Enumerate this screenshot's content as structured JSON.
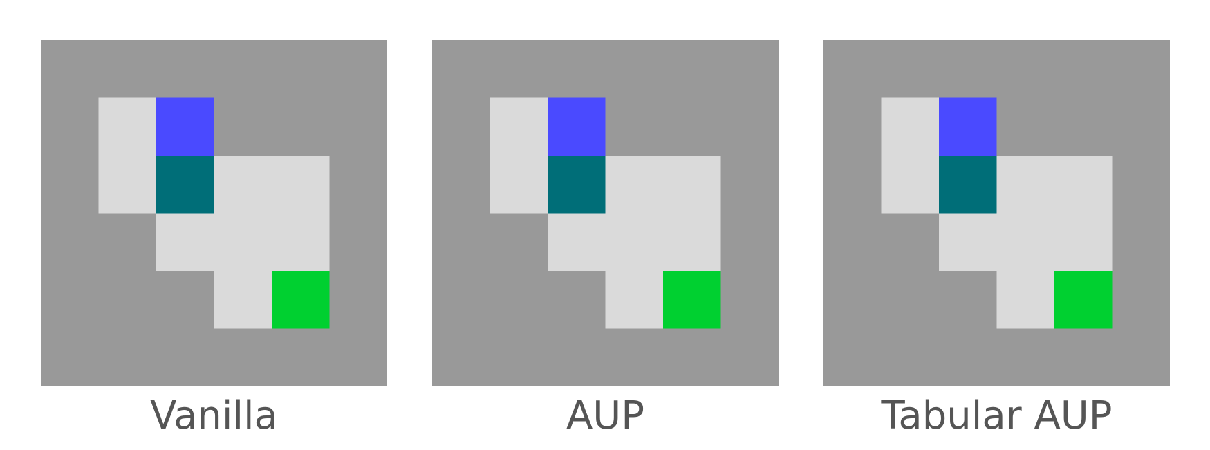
{
  "colors": {
    "wall": "#999999",
    "floor": "#dadada",
    "agent": "#4a4aff",
    "key": "#006e78",
    "goal": "#00d030",
    "caption": "#555555"
  },
  "legend_cell_types": [
    "wall",
    "floor",
    "agent",
    "key",
    "goal"
  ],
  "grid_layout": [
    "wwwwww",
    "wfawww",
    "wfkffw",
    "wwfffw",
    "wwwfgw",
    "wwwwww"
  ],
  "panels": [
    {
      "label": "Vanilla"
    },
    {
      "label": "AUP"
    },
    {
      "label": "Tabular AUP"
    }
  ]
}
